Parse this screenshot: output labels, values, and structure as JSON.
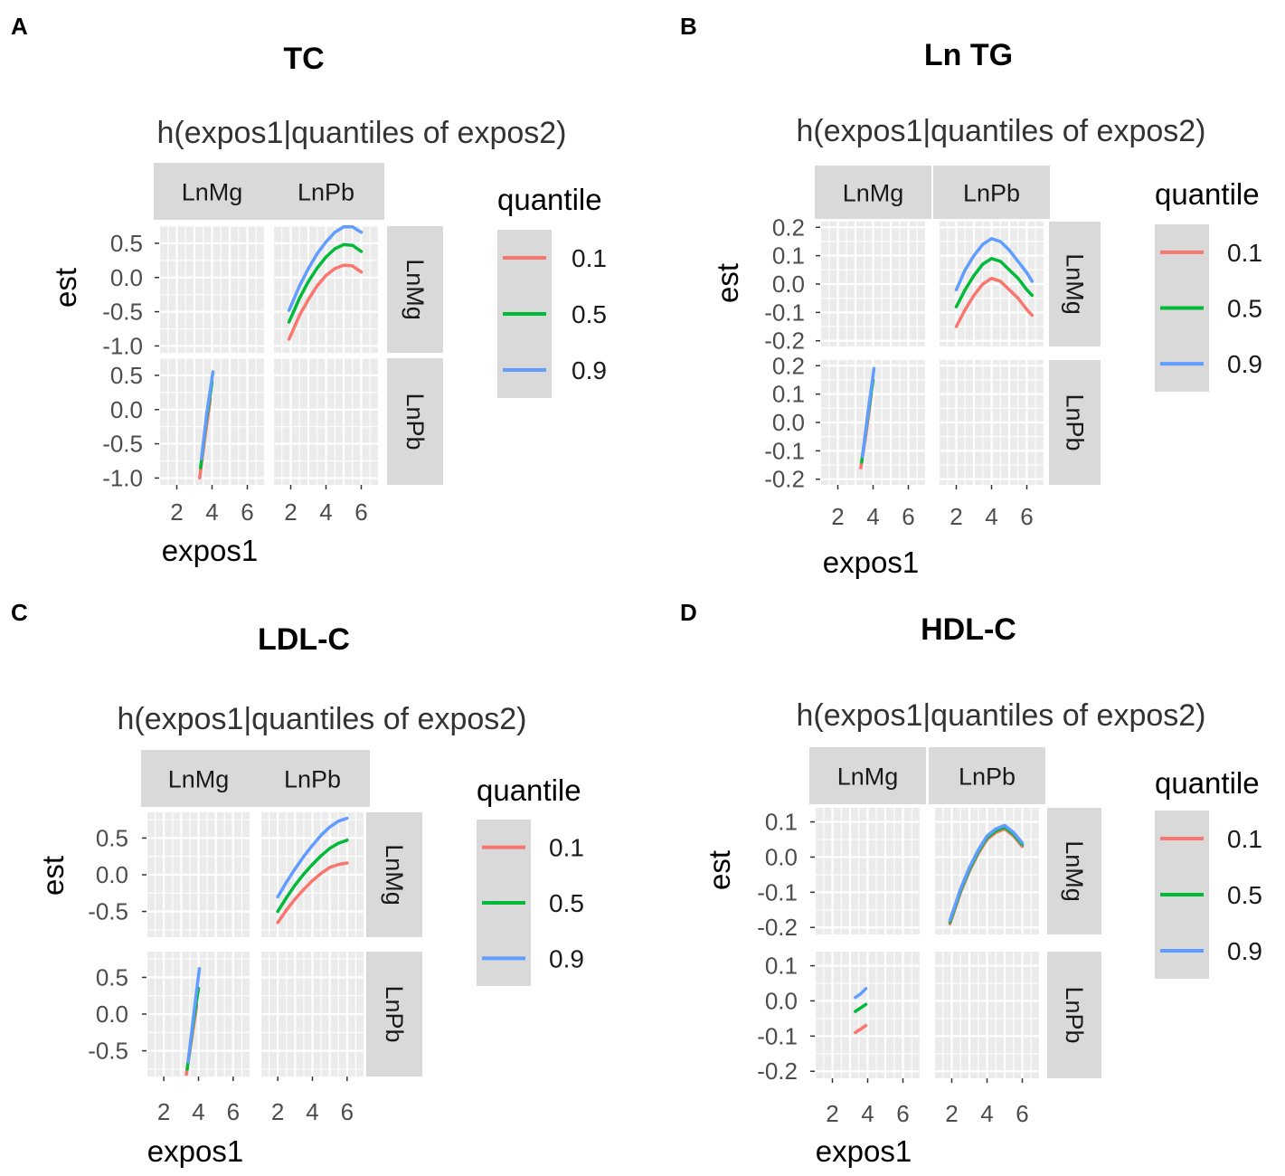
{
  "figure": {
    "panel_letters": [
      "A",
      "B",
      "C",
      "D"
    ]
  },
  "chart_data": [
    {
      "panel": "A",
      "type": "line",
      "title": "TC",
      "subtitle": "h(expos1|quantiles of expos2)",
      "xlabel": "expos1",
      "ylabel": "est",
      "legend_title": "quantile",
      "legend": [
        "0.1",
        "0.5",
        "0.9"
      ],
      "colors": [
        "#F8766D",
        "#00BA38",
        "#619CFF"
      ],
      "col_strips": [
        "LnMg",
        "LnPb"
      ],
      "row_strips": [
        "LnMg",
        "LnPb"
      ],
      "xlim": [
        1,
        7
      ],
      "xticks": [
        2,
        4,
        6
      ],
      "xtick_labels": [
        "2",
        "4",
        "6"
      ],
      "ylim": [
        -1.1,
        0.75
      ],
      "yticks": [
        0.5,
        0.0,
        -0.5,
        -1.0
      ],
      "ytick_labels": [
        "0.5",
        "0.0",
        "-0.5",
        "-1.0"
      ],
      "cells": [
        {
          "row": 0,
          "col": 1,
          "series": [
            {
              "name": "0.1",
              "x": [
                1.9,
                2.5,
                3.0,
                3.5,
                4.0,
                4.5,
                5.0,
                5.5,
                6.0
              ],
              "y": [
                -0.9,
                -0.55,
                -0.32,
                -0.12,
                0.03,
                0.13,
                0.18,
                0.17,
                0.08
              ]
            },
            {
              "name": "0.5",
              "x": [
                1.9,
                2.5,
                3.0,
                3.5,
                4.0,
                4.5,
                5.0,
                5.5,
                6.0
              ],
              "y": [
                -0.65,
                -0.3,
                -0.06,
                0.14,
                0.3,
                0.42,
                0.48,
                0.47,
                0.38
              ]
            },
            {
              "name": "0.9",
              "x": [
                1.9,
                2.5,
                3.0,
                3.5,
                4.0,
                4.5,
                5.0,
                5.5,
                6.0
              ],
              "y": [
                -0.48,
                -0.12,
                0.13,
                0.35,
                0.52,
                0.66,
                0.74,
                0.74,
                0.66
              ]
            }
          ]
        },
        {
          "row": 1,
          "col": 0,
          "series": [
            {
              "name": "0.1",
              "x": [
                3.3,
                3.6,
                3.9
              ],
              "y": [
                -1.0,
                -0.4,
                0.15
              ]
            },
            {
              "name": "0.5",
              "x": [
                3.35,
                3.65,
                4.0
              ],
              "y": [
                -0.85,
                -0.2,
                0.4
              ]
            },
            {
              "name": "0.9",
              "x": [
                3.4,
                3.7,
                4.05
              ],
              "y": [
                -0.72,
                -0.05,
                0.55
              ]
            }
          ]
        }
      ]
    },
    {
      "panel": "B",
      "type": "line",
      "title": "Ln TG",
      "subtitle": "h(expos1|quantiles of expos2)",
      "xlabel": "expos1",
      "ylabel": "est",
      "legend_title": "quantile",
      "legend": [
        "0.1",
        "0.5",
        "0.9"
      ],
      "colors": [
        "#F8766D",
        "#00BA38",
        "#619CFF"
      ],
      "col_strips": [
        "LnMg",
        "LnPb"
      ],
      "row_strips": [
        "LnMg",
        "LnPb"
      ],
      "xlim": [
        1,
        7
      ],
      "xticks": [
        2,
        4,
        6
      ],
      "xtick_labels": [
        "2",
        "4",
        "6"
      ],
      "ylim": [
        -0.22,
        0.22
      ],
      "yticks": [
        0.2,
        0.1,
        0.0,
        -0.1,
        -0.2
      ],
      "ytick_labels": [
        "0.2",
        "0.1",
        "0.0",
        "-0.1",
        "-0.2"
      ],
      "cells": [
        {
          "row": 0,
          "col": 1,
          "series": [
            {
              "name": "0.1",
              "x": [
                2.0,
                2.5,
                3.0,
                3.5,
                4.0,
                4.5,
                5.0,
                5.5,
                6.0,
                6.3
              ],
              "y": [
                -0.15,
                -0.09,
                -0.04,
                0.0,
                0.02,
                0.01,
                -0.02,
                -0.05,
                -0.09,
                -0.11
              ]
            },
            {
              "name": "0.5",
              "x": [
                2.0,
                2.5,
                3.0,
                3.5,
                4.0,
                4.5,
                5.0,
                5.5,
                6.0,
                6.3
              ],
              "y": [
                -0.08,
                -0.02,
                0.03,
                0.07,
                0.09,
                0.08,
                0.05,
                0.02,
                -0.02,
                -0.04
              ]
            },
            {
              "name": "0.9",
              "x": [
                2.0,
                2.5,
                3.0,
                3.5,
                4.0,
                4.5,
                5.0,
                5.5,
                6.0,
                6.3
              ],
              "y": [
                -0.02,
                0.05,
                0.1,
                0.14,
                0.16,
                0.15,
                0.12,
                0.08,
                0.04,
                0.01
              ]
            }
          ]
        },
        {
          "row": 1,
          "col": 0,
          "series": [
            {
              "name": "0.1",
              "x": [
                3.3,
                3.6,
                3.9
              ],
              "y": [
                -0.16,
                -0.04,
                0.1
              ]
            },
            {
              "name": "0.5",
              "x": [
                3.35,
                3.65,
                4.0
              ],
              "y": [
                -0.14,
                0.0,
                0.15
              ]
            },
            {
              "name": "0.9",
              "x": [
                3.4,
                3.7,
                4.05
              ],
              "y": [
                -0.12,
                0.03,
                0.19
              ]
            }
          ]
        }
      ]
    },
    {
      "panel": "C",
      "type": "line",
      "title": "LDL-C",
      "subtitle": "h(expos1|quantiles of expos2)",
      "xlabel": "expos1",
      "ylabel": "est",
      "legend_title": "quantile",
      "legend": [
        "0.1",
        "0.5",
        "0.9"
      ],
      "colors": [
        "#F8766D",
        "#00BA38",
        "#619CFF"
      ],
      "col_strips": [
        "LnMg",
        "LnPb"
      ],
      "row_strips": [
        "LnMg",
        "LnPb"
      ],
      "xlim": [
        1,
        7
      ],
      "xticks": [
        2,
        4,
        6
      ],
      "xtick_labels": [
        "2",
        "4",
        "6"
      ],
      "ylim": [
        -0.85,
        0.85
      ],
      "yticks": [
        0.5,
        0.0,
        -0.5
      ],
      "ytick_labels": [
        "0.5",
        "0.0",
        "-0.5"
      ],
      "cells": [
        {
          "row": 0,
          "col": 1,
          "series": [
            {
              "name": "0.1",
              "x": [
                2.0,
                2.5,
                3.0,
                3.5,
                4.0,
                4.5,
                5.0,
                5.5,
                6.0
              ],
              "y": [
                -0.65,
                -0.48,
                -0.33,
                -0.2,
                -0.08,
                0.02,
                0.1,
                0.14,
                0.16
              ]
            },
            {
              "name": "0.5",
              "x": [
                2.0,
                2.5,
                3.0,
                3.5,
                4.0,
                4.5,
                5.0,
                5.5,
                6.0
              ],
              "y": [
                -0.5,
                -0.31,
                -0.14,
                0.01,
                0.14,
                0.26,
                0.36,
                0.43,
                0.47
              ]
            },
            {
              "name": "0.9",
              "x": [
                2.0,
                2.5,
                3.0,
                3.5,
                4.0,
                4.5,
                5.0,
                5.5,
                6.0
              ],
              "y": [
                -0.3,
                -0.1,
                0.08,
                0.25,
                0.4,
                0.54,
                0.65,
                0.73,
                0.77
              ]
            }
          ]
        },
        {
          "row": 1,
          "col": 0,
          "series": [
            {
              "name": "0.1",
              "x": [
                3.3,
                3.6,
                3.9
              ],
              "y": [
                -0.82,
                -0.35,
                0.12
              ]
            },
            {
              "name": "0.5",
              "x": [
                3.35,
                3.65,
                4.0
              ],
              "y": [
                -0.75,
                -0.2,
                0.35
              ]
            },
            {
              "name": "0.9",
              "x": [
                3.4,
                3.7,
                4.05
              ],
              "y": [
                -0.65,
                -0.05,
                0.62
              ]
            }
          ]
        }
      ]
    },
    {
      "panel": "D",
      "type": "line",
      "title": "HDL-C",
      "subtitle": "h(expos1|quantiles of expos2)",
      "xlabel": "expos1",
      "ylabel": "est",
      "legend_title": "quantile",
      "legend": [
        "0.1",
        "0.5",
        "0.9"
      ],
      "colors": [
        "#F8766D",
        "#00BA38",
        "#619CFF"
      ],
      "col_strips": [
        "LnMg",
        "LnPb"
      ],
      "row_strips": [
        "LnMg",
        "LnPb"
      ],
      "xlim": [
        1,
        7
      ],
      "xticks": [
        2,
        4,
        6
      ],
      "xtick_labels": [
        "2",
        "4",
        "6"
      ],
      "ylim": [
        -0.22,
        0.14
      ],
      "yticks": [
        0.1,
        0.0,
        -0.1,
        -0.2
      ],
      "ytick_labels": [
        "0.1",
        "0.0",
        "-0.1",
        "-0.2"
      ],
      "cells": [
        {
          "row": 0,
          "col": 1,
          "series": [
            {
              "name": "0.1",
              "x": [
                1.9,
                2.5,
                3.0,
                3.5,
                4.0,
                4.5,
                5.0,
                5.5,
                6.0
              ],
              "y": [
                -0.19,
                -0.1,
                -0.04,
                0.01,
                0.05,
                0.07,
                0.08,
                0.06,
                0.03
              ]
            },
            {
              "name": "0.5",
              "x": [
                1.9,
                2.5,
                3.0,
                3.5,
                4.0,
                4.5,
                5.0,
                5.5,
                6.0
              ],
              "y": [
                -0.185,
                -0.095,
                -0.035,
                0.015,
                0.055,
                0.075,
                0.085,
                0.065,
                0.035
              ]
            },
            {
              "name": "0.9",
              "x": [
                1.9,
                2.5,
                3.0,
                3.5,
                4.0,
                4.5,
                5.0,
                5.5,
                6.0
              ],
              "y": [
                -0.18,
                -0.09,
                -0.03,
                0.02,
                0.06,
                0.08,
                0.09,
                0.07,
                0.04
              ]
            }
          ]
        },
        {
          "row": 1,
          "col": 0,
          "series": [
            {
              "name": "0.1",
              "x": [
                3.3,
                3.6,
                3.9
              ],
              "y": [
                -0.09,
                -0.08,
                -0.07
              ]
            },
            {
              "name": "0.5",
              "x": [
                3.3,
                3.6,
                3.9
              ],
              "y": [
                -0.03,
                -0.02,
                -0.01
              ]
            },
            {
              "name": "0.9",
              "x": [
                3.3,
                3.6,
                3.9
              ],
              "y": [
                0.01,
                0.02,
                0.035
              ]
            }
          ]
        }
      ]
    }
  ]
}
